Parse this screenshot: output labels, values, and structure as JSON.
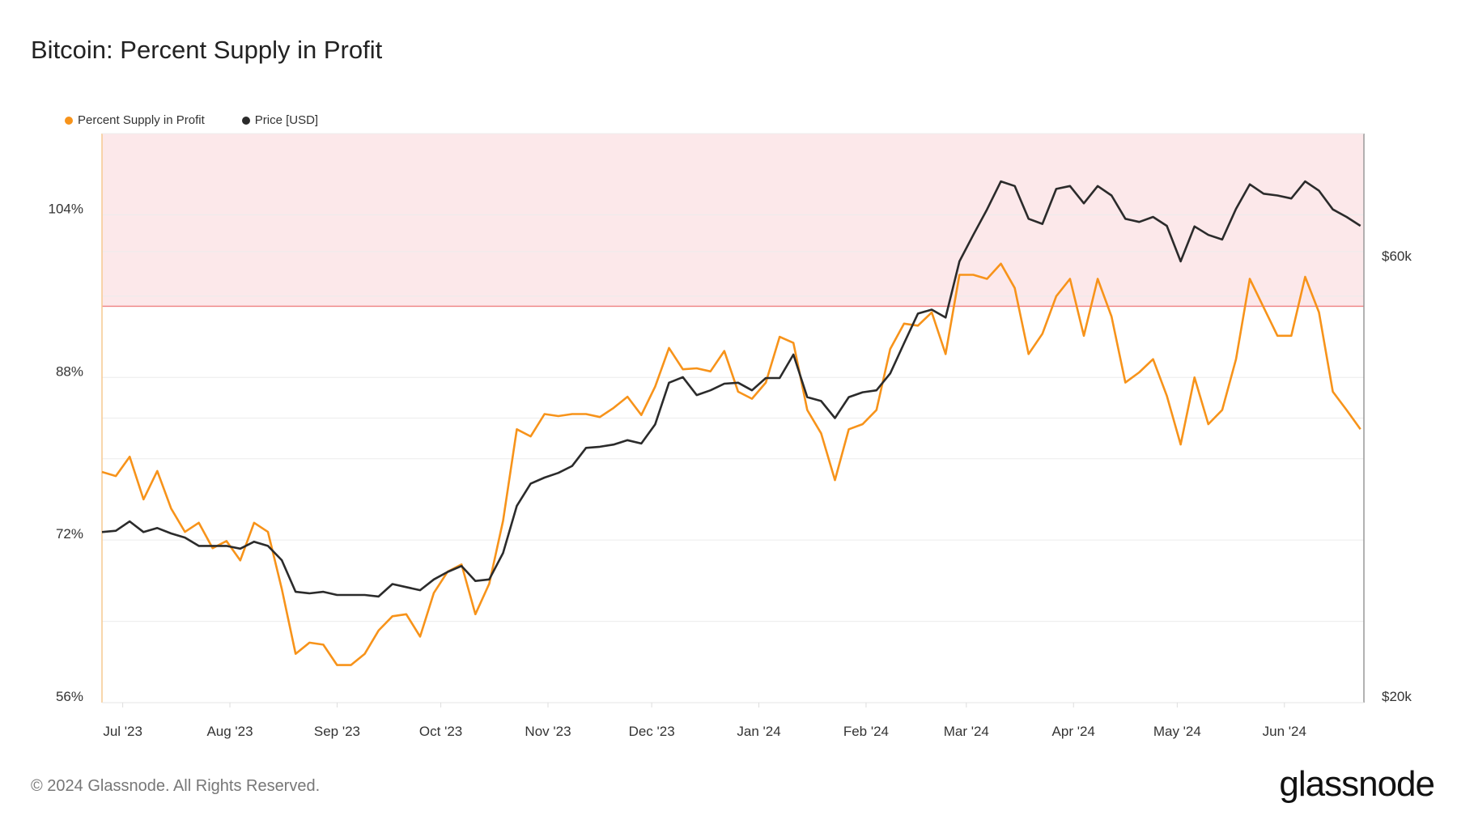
{
  "chart_data": {
    "type": "line",
    "title": "Bitcoin: Percent Supply in Profit",
    "legend_position": "top-left",
    "grid": true,
    "colors": {
      "percent": "#f7931a",
      "price": "#2b2b2b",
      "band": "#fce8ea",
      "threshold": "#f08a8a"
    },
    "threshold_percent": 95,
    "y_left": {
      "range": [
        56,
        112
      ],
      "ticks": [
        56,
        72,
        88,
        104
      ],
      "tick_labels": [
        "56%",
        "72%",
        "88%",
        "104%"
      ]
    },
    "y_right": {
      "scale": "log",
      "range": [
        20000,
        80000
      ],
      "ticks": [
        20000,
        60000
      ],
      "tick_labels": [
        "$20k",
        "$60k"
      ]
    },
    "x_axis": {
      "range": [
        "2023-06-25",
        "2024-06-24"
      ],
      "ticks": [
        "2023-07-01",
        "2023-08-01",
        "2023-09-01",
        "2023-10-01",
        "2023-11-01",
        "2023-12-01",
        "2024-01-01",
        "2024-02-01",
        "2024-03-01",
        "2024-04-01",
        "2024-05-01",
        "2024-06-01"
      ],
      "tick_labels": [
        "Jul '23",
        "Aug '23",
        "Sep '23",
        "Oct '23",
        "Nov '23",
        "Dec '23",
        "Jan '24",
        "Feb '24",
        "Mar '24",
        "Apr '24",
        "May '24",
        "Jun '24"
      ]
    },
    "x": [
      "2023-06-25",
      "2023-06-29",
      "2023-07-03",
      "2023-07-07",
      "2023-07-11",
      "2023-07-15",
      "2023-07-19",
      "2023-07-23",
      "2023-07-27",
      "2023-07-31",
      "2023-08-04",
      "2023-08-08",
      "2023-08-12",
      "2023-08-16",
      "2023-08-20",
      "2023-08-24",
      "2023-08-28",
      "2023-09-01",
      "2023-09-05",
      "2023-09-09",
      "2023-09-13",
      "2023-09-17",
      "2023-09-21",
      "2023-09-25",
      "2023-09-29",
      "2023-10-03",
      "2023-10-07",
      "2023-10-11",
      "2023-10-15",
      "2023-10-19",
      "2023-10-23",
      "2023-10-27",
      "2023-10-31",
      "2023-11-04",
      "2023-11-08",
      "2023-11-12",
      "2023-11-16",
      "2023-11-20",
      "2023-11-24",
      "2023-11-28",
      "2023-12-02",
      "2023-12-06",
      "2023-12-10",
      "2023-12-14",
      "2023-12-18",
      "2023-12-22",
      "2023-12-26",
      "2023-12-30",
      "2024-01-03",
      "2024-01-07",
      "2024-01-11",
      "2024-01-15",
      "2024-01-19",
      "2024-01-23",
      "2024-01-27",
      "2024-01-31",
      "2024-02-04",
      "2024-02-08",
      "2024-02-12",
      "2024-02-16",
      "2024-02-20",
      "2024-02-24",
      "2024-02-28",
      "2024-03-03",
      "2024-03-07",
      "2024-03-11",
      "2024-03-15",
      "2024-03-19",
      "2024-03-23",
      "2024-03-27",
      "2024-03-31",
      "2024-04-04",
      "2024-04-08",
      "2024-04-12",
      "2024-04-16",
      "2024-04-20",
      "2024-04-24",
      "2024-04-28",
      "2024-05-02",
      "2024-05-06",
      "2024-05-10",
      "2024-05-14",
      "2024-05-18",
      "2024-05-22",
      "2024-05-26",
      "2024-05-30",
      "2024-06-03",
      "2024-06-07",
      "2024-06-11",
      "2024-06-15",
      "2024-06-19",
      "2024-06-23"
    ],
    "series": [
      {
        "name": "Percent Supply in Profit",
        "axis": "left",
        "values": [
          78.7,
          78.3,
          80.2,
          76.0,
          78.8,
          75.1,
          72.8,
          73.7,
          71.2,
          71.9,
          70.0,
          73.7,
          72.8,
          67.2,
          60.8,
          61.9,
          61.7,
          59.7,
          59.7,
          60.8,
          63.1,
          64.5,
          64.7,
          62.5,
          66.8,
          68.9,
          69.6,
          64.7,
          67.7,
          73.9,
          82.9,
          82.2,
          84.4,
          84.2,
          84.4,
          84.4,
          84.1,
          85.0,
          86.1,
          84.3,
          87.1,
          90.9,
          88.8,
          88.9,
          88.6,
          90.6,
          86.6,
          85.9,
          87.5,
          92.0,
          91.4,
          84.8,
          82.5,
          77.9,
          82.9,
          83.4,
          84.8,
          90.8,
          93.3,
          93.1,
          94.4,
          90.3,
          98.1,
          98.1,
          97.7,
          99.2,
          96.8,
          90.3,
          92.3,
          96.0,
          97.7,
          92.1,
          97.7,
          94.0,
          87.5,
          88.5,
          89.8,
          86.2,
          81.4,
          88.0,
          83.4,
          84.8,
          89.8,
          97.7,
          94.9,
          92.1,
          92.1,
          97.9,
          94.4,
          86.6,
          84.8,
          82.9
        ]
      },
      {
        "name": "Price [USD]",
        "axis": "right",
        "values": [
          30300,
          30400,
          31100,
          30300,
          30600,
          30200,
          29900,
          29300,
          29300,
          29300,
          29100,
          29600,
          29300,
          28300,
          26200,
          26100,
          26200,
          26000,
          26000,
          26000,
          25900,
          26700,
          26500,
          26300,
          27000,
          27500,
          27900,
          26900,
          27000,
          28800,
          32300,
          34100,
          34600,
          35000,
          35600,
          37200,
          37300,
          37500,
          37900,
          37600,
          39400,
          43600,
          44200,
          42300,
          42800,
          43500,
          43600,
          42800,
          44100,
          44100,
          46700,
          42100,
          41700,
          40000,
          42100,
          42600,
          42800,
          44600,
          48000,
          51600,
          52100,
          51100,
          58600,
          62500,
          66500,
          71200,
          70400,
          65000,
          64200,
          69900,
          70400,
          67500,
          70400,
          68800,
          65000,
          64500,
          65300,
          63900,
          58600,
          63800,
          62500,
          61800,
          66600,
          70700,
          69100,
          68800,
          68300,
          71200,
          69600,
          66500,
          65300,
          63900
        ]
      }
    ]
  },
  "header": {
    "title": "Bitcoin: Percent Supply in Profit"
  },
  "legend": {
    "percent_label": "Percent Supply in Profit",
    "price_label": "Price [USD]"
  },
  "footer": {
    "copyright": "© 2024 Glassnode. All Rights Reserved.",
    "logo": "glassnode"
  }
}
